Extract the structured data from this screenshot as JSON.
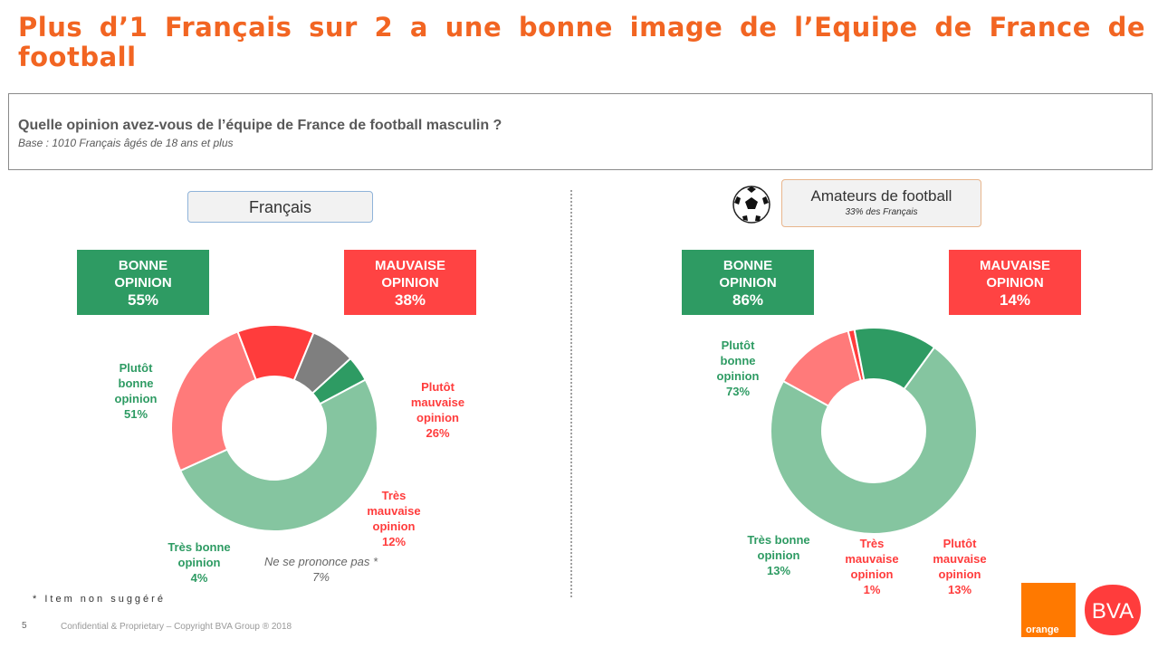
{
  "title": "Plus d’1 Français sur 2 a une bonne image de l’Equipe de France de football",
  "question": "Quelle opinion avez-vous de l’équipe de France de football masculin ?",
  "base": "Base : 1010 Français âgés de 18 ans et plus",
  "left": {
    "segment": "Français",
    "good_box": {
      "line1": "BONNE",
      "line2": "OPINION",
      "pct": "55%"
    },
    "bad_box": {
      "line1": "MAUVAISE",
      "line2": "OPINION",
      "pct": "38%"
    },
    "labels": {
      "plutot_bonne": [
        "Plutôt",
        "bonne",
        "opinion",
        "51%"
      ],
      "plutot_mauvaise": [
        "Plutôt",
        "mauvaise",
        "opinion",
        "26%"
      ],
      "tres_mauvaise": [
        "Très",
        "mauvaise",
        "opinion",
        "12%"
      ],
      "tres_bonne": [
        "Très bonne",
        "opinion",
        "4%"
      ],
      "nspp": [
        "Ne se prononce pas *",
        "7%"
      ]
    }
  },
  "right": {
    "segment": "Amateurs de football",
    "segment_sub": "33% des Français",
    "good_box": {
      "line1": "BONNE",
      "line2": "OPINION",
      "pct": "86%"
    },
    "bad_box": {
      "line1": "MAUVAISE",
      "line2": "OPINION",
      "pct": "14%"
    },
    "labels": {
      "plutot_bonne": [
        "Plutôt",
        "bonne",
        "opinion",
        "73%"
      ],
      "tres_bonne": [
        "Très bonne",
        "opinion",
        "13%"
      ],
      "tres_mauvaise": [
        "Très",
        "mauvaise",
        "opinion",
        "1%"
      ],
      "plutot_mauvaise": [
        "Plutôt",
        "mauvaise",
        "opinion",
        "13%"
      ]
    }
  },
  "footnote": "* Item non suggéré",
  "page_number": "5",
  "confidential": "Confidential & Proprietary – Copyright BVA Group ® 2018",
  "logos": {
    "orange": "orange",
    "bva": "BVA"
  },
  "colors": {
    "plutot_bonne": "#85c5a0",
    "tres_bonne": "#2e9b63",
    "plutot_mauvaise": "#ff7a7a",
    "tres_mauvaise": "#ff3c3c",
    "nspp": "#7f7f7f"
  },
  "chart_data": [
    {
      "type": "pie",
      "title": "Français",
      "categories": [
        "Plutôt bonne opinion",
        "Plutôt mauvaise opinion",
        "Très mauvaise opinion",
        "Ne se prononce pas *",
        "Très bonne opinion"
      ],
      "values": [
        51,
        26,
        12,
        7,
        4
      ],
      "colors": [
        "#85c5a0",
        "#ff7a7a",
        "#ff3c3c",
        "#7f7f7f",
        "#2e9b63"
      ]
    },
    {
      "type": "pie",
      "title": "Amateurs de football",
      "categories": [
        "Plutôt bonne opinion",
        "Plutôt mauvaise opinion",
        "Très mauvaise opinion",
        "Très bonne opinion"
      ],
      "values": [
        73,
        13,
        1,
        13
      ],
      "colors": [
        "#85c5a0",
        "#ff7a7a",
        "#ff3c3c",
        "#2e9b63"
      ]
    }
  ]
}
